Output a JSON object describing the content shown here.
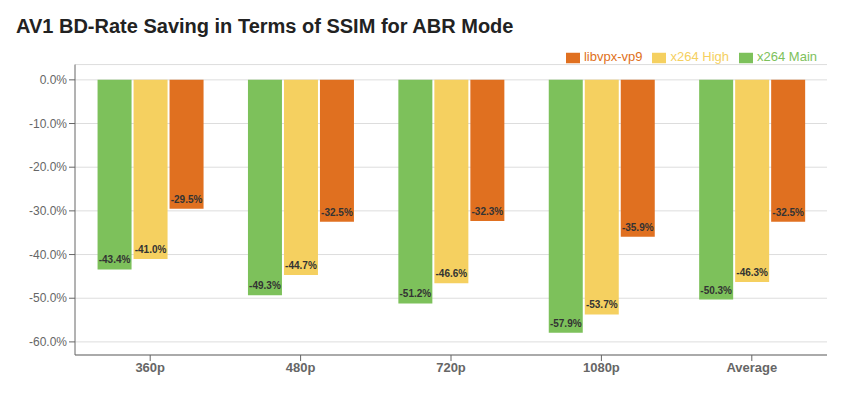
{
  "chart_data": {
    "type": "bar",
    "title": "AV1 BD-Rate Saving in Terms of SSIM for ABR Mode",
    "categories": [
      "360p",
      "480p",
      "720p",
      "1080p",
      "Average"
    ],
    "series": [
      {
        "name": "x264 Main",
        "color": "#7DC15B",
        "values": [
          -43.4,
          -49.3,
          -51.2,
          -57.9,
          -50.3
        ],
        "value_labels": [
          "-43.4%",
          "-49.3%",
          "-51.2%",
          "-57.9%",
          "-50.3%"
        ]
      },
      {
        "name": "x264 High",
        "color": "#F5D060",
        "values": [
          -41.0,
          -44.7,
          -46.6,
          -53.7,
          -46.3
        ],
        "value_labels": [
          "-41.0%",
          "-44.7%",
          "-46.6%",
          "-53.7%",
          "-46.3%"
        ]
      },
      {
        "name": "libvpx-vp9",
        "color": "#E07020",
        "values": [
          -29.5,
          -32.5,
          -32.3,
          -35.9,
          -32.5
        ],
        "value_labels": [
          "-29.5%",
          "-32.5%",
          "-32.3%",
          "-35.9%",
          "-32.5%"
        ]
      }
    ],
    "ylim": [
      -63,
      3.5
    ],
    "yticks": [
      {
        "value": 0.0,
        "label": "0.0%"
      },
      {
        "value": -10.0,
        "label": "-10.0%"
      },
      {
        "value": -20.0,
        "label": "-20.0%"
      },
      {
        "value": -30.0,
        "label": "-30.0%"
      },
      {
        "value": -40.0,
        "label": "-40.0%"
      },
      {
        "value": -50.0,
        "label": "-50.0%"
      },
      {
        "value": -60.0,
        "label": "-60.0%"
      }
    ],
    "grid": true,
    "legend": "top",
    "data_labels": true
  }
}
